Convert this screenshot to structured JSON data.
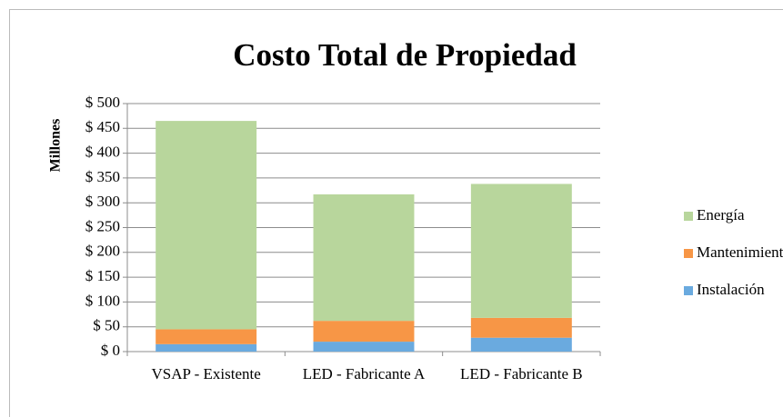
{
  "chart_data": {
    "type": "stacked_bar",
    "title": "Costo Total de Propiedad",
    "y_label": "Millones",
    "categories": [
      "VSAP - Existente",
      "LED  - Fabricante A",
      "LED  - Fabricante B"
    ],
    "series": [
      {
        "name": "Instalación",
        "color": "#6aaadf",
        "values": [
          15,
          20,
          28
        ]
      },
      {
        "name": "Mantenimiento",
        "color": "#f79646",
        "values": [
          30,
          42,
          40
        ]
      },
      {
        "name": "Energía",
        "color": "#b8d69c",
        "values": [
          420,
          255,
          270
        ]
      }
    ],
    "ylim": [
      0,
      500
    ],
    "yticks": [
      {
        "value": 0,
        "label": "$ 0"
      },
      {
        "value": 50,
        "label": "$ 50"
      },
      {
        "value": 100,
        "label": "$ 100"
      },
      {
        "value": 150,
        "label": "$ 150"
      },
      {
        "value": 200,
        "label": "$ 200"
      },
      {
        "value": 250,
        "label": "$ 250"
      },
      {
        "value": 300,
        "label": "$ 300"
      },
      {
        "value": 350,
        "label": "$ 350"
      },
      {
        "value": 400,
        "label": "$ 400"
      },
      {
        "value": 450,
        "label": "$ 450"
      },
      {
        "value": 500,
        "label": "$ 500"
      }
    ],
    "grid": true,
    "legend": "right"
  }
}
